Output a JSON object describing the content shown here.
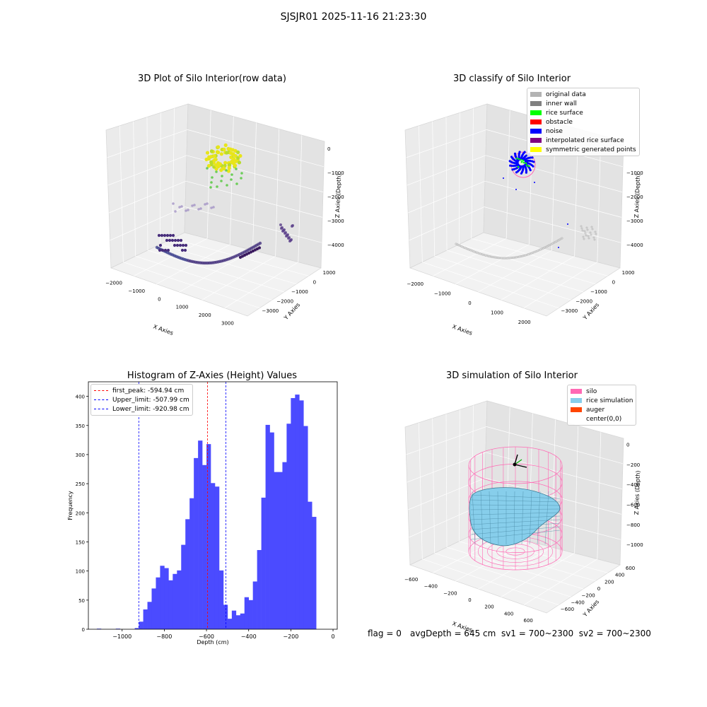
{
  "suptitle": "SJSJR01 2025-11-16 21:23:30",
  "panels": {
    "raw": {
      "title": "3D Plot of Silo Interior(row data)",
      "xlabel": "X Axies",
      "ylabel": "Y Axies",
      "zlabel": "Z Axies (Depth)",
      "xticks": [
        "−2000",
        "−1000",
        "0",
        "1000",
        "2000",
        "3000"
      ],
      "yticks": [
        "1000",
        "0",
        "−1000",
        "−2000",
        "−3000"
      ],
      "zticks": [
        "0",
        "−1000",
        "−2000",
        "−3000",
        "−4000"
      ]
    },
    "classify": {
      "title": "3D classify of Silo Interior",
      "xlabel": "X Axies",
      "ylabel": "Y Axies",
      "zlabel": "Z Axies (Depth)",
      "xticks": [
        "−2000",
        "−1000",
        "0",
        "1000",
        "2000"
      ],
      "yticks": [
        "1000",
        "0",
        "−1000",
        "−2000",
        "−3000"
      ],
      "zticks": [
        "0",
        "−1000",
        "−2000",
        "−3000",
        "−4000"
      ],
      "legend": [
        {
          "label": "original data",
          "color": "#b3b3b3"
        },
        {
          "label": "inner wall",
          "color": "#808080"
        },
        {
          "label": "rice surface",
          "color": "#00ff00"
        },
        {
          "label": "obstacle",
          "color": "#ff0000"
        },
        {
          "label": "noise",
          "color": "#0000ff"
        },
        {
          "label": "interpolated rice surface",
          "color": "#800080"
        },
        {
          "label": "symmetric generated points",
          "color": "#ffff00"
        }
      ]
    },
    "simulation": {
      "title": "3D simulation of Silo Interior",
      "xlabel": "X Axies",
      "ylabel": "Y Axies",
      "zlabel": "Z Axies (Depth)",
      "xticks": [
        "−600",
        "−400",
        "−200",
        "0",
        "200",
        "400",
        "600"
      ],
      "yticks": [
        "600",
        "400",
        "200",
        "0",
        "−200",
        "−400",
        "−600"
      ],
      "zticks": [
        "0",
        "−200",
        "−400",
        "−600",
        "−800",
        "−1000"
      ],
      "legend": [
        {
          "label": "silo",
          "color": "#ff69b4"
        },
        {
          "label": "rice simulation",
          "color": "#87ceeb"
        },
        {
          "label": "auger",
          "color": "#ff4500"
        },
        {
          "label": "center(0,0)",
          "color": "#ffffff"
        }
      ]
    }
  },
  "footer": {
    "flag": "flag = 0",
    "avg": "avgDepth = 645 cm  sv1 = 700~2300  sv2 = 700~2300"
  },
  "chart_data": {
    "type": "bar",
    "title": "Histogram of Z-Axies (Height) Values",
    "xlabel": "Depth (cm)",
    "ylabel": "Frequency",
    "xlim": [
      -1160,
      20
    ],
    "ylim": [
      0,
      425
    ],
    "xticks": [
      -1000,
      -800,
      -600,
      -400,
      -200,
      0
    ],
    "xtick_labels": [
      "−1000",
      "−800",
      "−600",
      "−400",
      "−200",
      "0"
    ],
    "yticks": [
      0,
      50,
      100,
      150,
      200,
      250,
      300,
      350,
      400
    ],
    "bin_width": 20,
    "bins": [
      {
        "x": -1110,
        "v": 1
      },
      {
        "x": -1020,
        "v": 1
      },
      {
        "x": -930,
        "v": 2
      },
      {
        "x": -910,
        "v": 13
      },
      {
        "x": -890,
        "v": 34
      },
      {
        "x": -870,
        "v": 47
      },
      {
        "x": -850,
        "v": 70
      },
      {
        "x": -830,
        "v": 89
      },
      {
        "x": -810,
        "v": 109
      },
      {
        "x": -790,
        "v": 105
      },
      {
        "x": -770,
        "v": 84
      },
      {
        "x": -750,
        "v": 95
      },
      {
        "x": -730,
        "v": 101
      },
      {
        "x": -710,
        "v": 145
      },
      {
        "x": -690,
        "v": 189
      },
      {
        "x": -670,
        "v": 225
      },
      {
        "x": -650,
        "v": 294
      },
      {
        "x": -630,
        "v": 324
      },
      {
        "x": -610,
        "v": 282
      },
      {
        "x": -590,
        "v": 318
      },
      {
        "x": -570,
        "v": 251
      },
      {
        "x": -550,
        "v": 245
      },
      {
        "x": -530,
        "v": 101
      },
      {
        "x": -510,
        "v": 42
      },
      {
        "x": -490,
        "v": 18
      },
      {
        "x": -470,
        "v": 32
      },
      {
        "x": -450,
        "v": 24
      },
      {
        "x": -430,
        "v": 27
      },
      {
        "x": -410,
        "v": 55
      },
      {
        "x": -390,
        "v": 50
      },
      {
        "x": -370,
        "v": 82
      },
      {
        "x": -350,
        "v": 136
      },
      {
        "x": -330,
        "v": 226
      },
      {
        "x": -310,
        "v": 351
      },
      {
        "x": -290,
        "v": 338
      },
      {
        "x": -270,
        "v": 270
      },
      {
        "x": -250,
        "v": 270
      },
      {
        "x": -230,
        "v": 287
      },
      {
        "x": -210,
        "v": 353
      },
      {
        "x": -190,
        "v": 397
      },
      {
        "x": -170,
        "v": 403
      },
      {
        "x": -150,
        "v": 393
      },
      {
        "x": -130,
        "v": 349
      },
      {
        "x": -110,
        "v": 219
      },
      {
        "x": -90,
        "v": 193
      }
    ],
    "bar_color": "#4b4bff",
    "reference_lines": [
      {
        "label": "first_peak: -594.94 cm",
        "value": -594.94,
        "color": "#ff0000"
      },
      {
        "label": "Upper_limit: -507.99 cm",
        "value": -507.99,
        "color": "#0000ff"
      },
      {
        "label": "Lower_limit: -920.98 cm",
        "value": -920.98,
        "color": "#0000ff"
      }
    ]
  }
}
